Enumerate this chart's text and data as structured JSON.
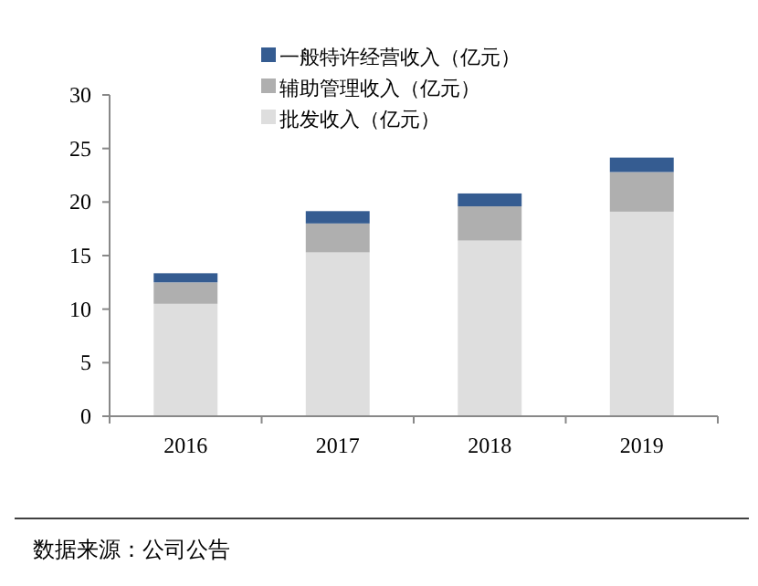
{
  "chart_data": {
    "type": "bar",
    "stacked": true,
    "categories": [
      "2016",
      "2017",
      "2018",
      "2019"
    ],
    "series": [
      {
        "name": "批发收入（亿元）",
        "color": "#dedede",
        "values": [
          10.5,
          15.3,
          16.4,
          19.1
        ]
      },
      {
        "name": "辅助管理收入（亿元）",
        "color": "#afafaf",
        "values": [
          2.0,
          2.7,
          3.2,
          3.7
        ]
      },
      {
        "name": "一般特许经营收入（亿元）",
        "color": "#355c91",
        "values": [
          0.85,
          1.15,
          1.2,
          1.35
        ]
      }
    ],
    "ylim": [
      0,
      30
    ],
    "yticks": [
      0,
      5,
      10,
      15,
      20,
      25,
      30
    ],
    "grid": false,
    "legend": "top",
    "annotations": [
      "数据来源：公司公告"
    ]
  }
}
